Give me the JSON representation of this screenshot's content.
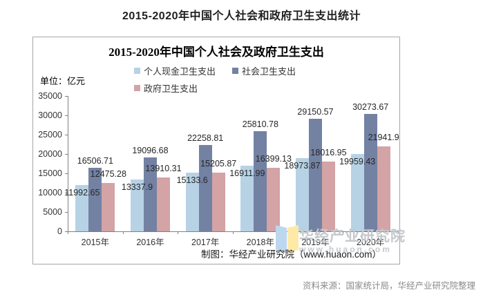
{
  "page": {
    "title": "2015-2020年中国个人社会和政府卫生支出统计",
    "source_note": "资料来源：国家统计局，华经产业研究院整理"
  },
  "chart": {
    "title": "2015-2020年中国个人社会及政府卫生支出",
    "unit_label": "单位：亿元",
    "caption": "制图：华经产业研究院（www.huaon.com）",
    "watermark": {
      "name": "华经产业研究院",
      "url": "www.huaon.com",
      "color": "#c5c9cd",
      "logo_colors": [
        "#bdd7ee",
        "#ffe9a8"
      ]
    }
  },
  "chart_data": {
    "type": "bar",
    "title": "2015-2020年中国个人社会及政府卫生支出",
    "categories": [
      "2015年",
      "2016年",
      "2017年",
      "2018年",
      "2019年",
      "2020年"
    ],
    "series": [
      {
        "name": "个人现金卫生支出",
        "color": "#b7d2e5",
        "values": [
          11992.65,
          13337.9,
          15133.6,
          16911.99,
          18973.87,
          19959.43
        ]
      },
      {
        "name": "社会卫生支出",
        "color": "#7381a3",
        "values": [
          16506.71,
          19096.68,
          22258.81,
          25810.78,
          29150.57,
          30273.67
        ]
      },
      {
        "name": "政府卫生支出",
        "color": "#d3a3a5",
        "values": [
          12475.28,
          13910.31,
          15205.87,
          16399.13,
          18016.95,
          21941.9
        ]
      }
    ],
    "ylabel": "亿元",
    "ylim": [
      0,
      35000
    ],
    "ytick_step": 5000,
    "grid": false,
    "legend_position": "top",
    "data_labels": true
  }
}
